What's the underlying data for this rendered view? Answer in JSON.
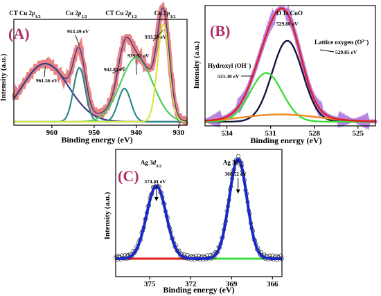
{
  "chart_data": [
    {
      "panel": "(A)",
      "type": "line",
      "xlabel": "Binding energy (eV)",
      "ylabel": "Intensity (a.u.)",
      "xlim": [
        969,
        928
      ],
      "x_reversed": true,
      "xticks": [
        960,
        950,
        940,
        930
      ],
      "top_labels": [
        {
          "text": "CT Cu 2p",
          "sub": "1/2"
        },
        {
          "text": "Cu 2p",
          "sub": "1/2"
        },
        {
          "text": "CT Cu 2p",
          "sub": "1/2"
        },
        {
          "text": "Cu 2p",
          "sub": "3/2"
        }
      ],
      "peak_labels": [
        {
          "text": "961.56 eV",
          "x": 961.56
        },
        {
          "text": "953.49 eV",
          "x": 953.49
        },
        {
          "text": "942.82 eV",
          "x": 942.82
        },
        {
          "text": "939.93 eV",
          "x": 939.93
        },
        {
          "text": "933.59 eV",
          "x": 933.59
        }
      ],
      "components": [
        {
          "center": 961.56,
          "amp": 0.56,
          "width": 5.5,
          "color": "#3b3a8c"
        },
        {
          "center": 953.49,
          "amp": 0.52,
          "width": 1.4,
          "color": "#2e8a8a"
        },
        {
          "center": 942.82,
          "amp": 0.32,
          "width": 1.5,
          "color": "#2e8a8a"
        },
        {
          "center": 939.93,
          "amp": 0.62,
          "width": 3.8,
          "color": "#4ecb5a"
        },
        {
          "center": 933.59,
          "amp": 0.94,
          "width": 1.4,
          "color": "#d9e640"
        }
      ],
      "envelope_color": "#3b3a8c",
      "raw_color": "#e05a5a"
    },
    {
      "panel": "(B)",
      "type": "line",
      "xlabel": "Binding energy (eV)",
      "ylabel": "Intensity (a.u.)",
      "xlim": [
        535.5,
        523.8
      ],
      "x_reversed": true,
      "xticks": [
        534,
        531,
        528,
        525
      ],
      "component_labels": [
        {
          "text": "O 1s CuO",
          "value": "529.80 eV"
        },
        {
          "text": "Lattice oxygen (O",
          "sup": "2−",
          "end": ")",
          "value": "529.85 eV"
        },
        {
          "text": "Hydroxyl (OH",
          "sup": "−",
          "end": ")",
          "value": "531.30 eV"
        }
      ],
      "components": [
        {
          "center": 529.85,
          "amp": 0.78,
          "width": 1.05,
          "color": "#15153d"
        },
        {
          "center": 531.3,
          "amp": 0.47,
          "width": 1.1,
          "color": "#3ddc3d"
        },
        {
          "center": 530.3,
          "amp": 0.07,
          "width": 2.6,
          "color": "#f08a20"
        }
      ],
      "envelope_color": "#e01c1c",
      "raw_color": "#9b4fd6"
    },
    {
      "panel": "(C)",
      "type": "line",
      "xlabel": "Binding energy (eV)",
      "ylabel": "Intensity (a.u.)",
      "xlim": [
        377.5,
        365.3
      ],
      "x_reversed": true,
      "xticks": [
        375,
        372,
        369,
        366
      ],
      "top_labels": [
        {
          "text": "Ag 3d",
          "sub": "3/2"
        },
        {
          "text": "Ag 3d",
          "sub": "5/2"
        }
      ],
      "peak_labels": [
        {
          "text": "374.51 eV",
          "x": 374.51
        },
        {
          "text": "368.52 eV",
          "x": 368.52
        }
      ],
      "components": [
        {
          "center": 374.51,
          "amp": 0.7,
          "width": 0.72,
          "color": "#1a28c8"
        },
        {
          "center": 368.52,
          "amp": 0.96,
          "width": 0.65,
          "color": "#1a28c8"
        }
      ],
      "baseline_colors": [
        "#e01c1c",
        "#3ddc3d"
      ],
      "envelope_color": "#1a28c8",
      "raw_color": "#303030"
    }
  ]
}
